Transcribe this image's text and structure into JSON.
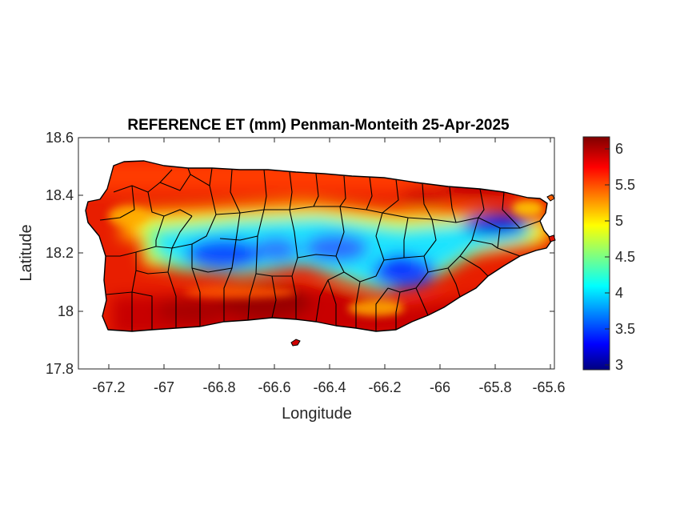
{
  "chart_data": {
    "type": "heatmap",
    "title": "REFERENCE ET (mm) Penman-Monteith 25-Apr-2025",
    "xlabel": "Longitude",
    "ylabel": "Latitude",
    "xlim": [
      -67.3,
      -65.58
    ],
    "ylim": [
      17.8,
      18.6
    ],
    "x_ticks": [
      -67.2,
      -67,
      -66.8,
      -66.6,
      -66.4,
      -66.2,
      -66,
      -65.8,
      -65.6
    ],
    "x_tick_labels": [
      "-67.2",
      "-67",
      "-66.8",
      "-66.6",
      "-66.4",
      "-66.2",
      "-66",
      "-65.8",
      "-65.6"
    ],
    "y_ticks": [
      17.8,
      18,
      18.2,
      18.4,
      18.6
    ],
    "y_tick_labels": [
      "17.8",
      "18",
      "18.2",
      "18.4",
      "18.6"
    ],
    "colorbar": {
      "min": 2.95,
      "max": 6.2,
      "colormap": "jet",
      "ticks": [
        3,
        3.5,
        4,
        4.5,
        5,
        5.5,
        6
      ],
      "tick_labels": [
        "3",
        "3.5",
        "4",
        "4.5",
        "5",
        "5.5",
        "6"
      ]
    },
    "region": "Puerto Rico",
    "value_pattern": {
      "coast": 5.8,
      "north_coast": 5.6,
      "south_coast": 6.0,
      "central_interior": 3.9,
      "eastern_interior_minimum": 3.4,
      "west_central_minimum": 3.5
    },
    "grid": false,
    "legend": "colorbar-right"
  }
}
